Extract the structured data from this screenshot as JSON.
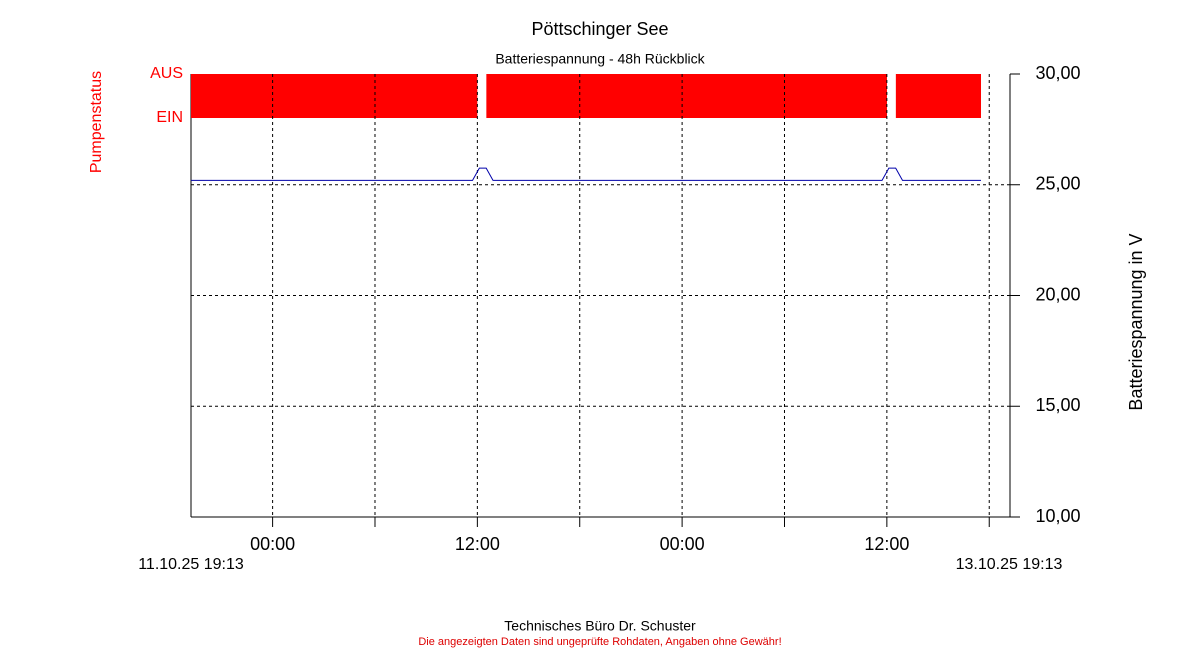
{
  "chart_data": {
    "type": "line",
    "title": "Pöttschinger See",
    "subtitle": "Batteriespannung - 48h Rückblick",
    "y_label": "Batteriespannung in V",
    "xlim": [
      0,
      48
    ],
    "xticks": [
      {
        "value": 4.783,
        "label": "00:00"
      },
      {
        "value": 16.783,
        "label": "12:00"
      },
      {
        "value": 28.783,
        "label": "00:00"
      },
      {
        "value": 40.783,
        "label": "12:00"
      }
    ],
    "xminorticks": [
      10.783,
      22.783,
      34.783,
      46.783
    ],
    "start_label": "11.10.25 19:13",
    "end_label": "13.10.25 19:13",
    "ylim": [
      10,
      30
    ],
    "yticks": [
      {
        "value": 10,
        "label": "10,00"
      },
      {
        "value": 15,
        "label": "15,00"
      },
      {
        "value": 20,
        "label": "20,00"
      },
      {
        "value": 25,
        "label": "25,00"
      },
      {
        "value": 30,
        "label": "30,00"
      }
    ],
    "grid": true,
    "series": [
      {
        "color": "#0000aa",
        "x": [
          0,
          16.5,
          16.9,
          17.3,
          17.7,
          40.5,
          40.9,
          41.3,
          41.7,
          46.3
        ],
        "values": [
          25.2,
          25.2,
          25.75,
          25.75,
          25.2,
          25.2,
          25.75,
          25.75,
          25.2,
          25.2
        ]
      }
    ],
    "status": {
      "label": "Pumpenstatus",
      "color": "#ff0000",
      "lim": [
        0,
        1
      ],
      "ticks": [
        {
          "value": 0,
          "label": "EIN"
        },
        {
          "value": 1,
          "label": "AUS"
        }
      ],
      "x": [
        0,
        16.78,
        17.31,
        40.79,
        41.31,
        46.3
      ],
      "values": [
        1,
        0,
        1,
        0,
        1,
        0
      ]
    }
  },
  "footer": {
    "company": "Technisches Büro Dr. Schuster",
    "disclaimer": "Die angezeigten Daten sind ungeprüfte Rohdaten, Angaben ohne Gewähr!"
  }
}
